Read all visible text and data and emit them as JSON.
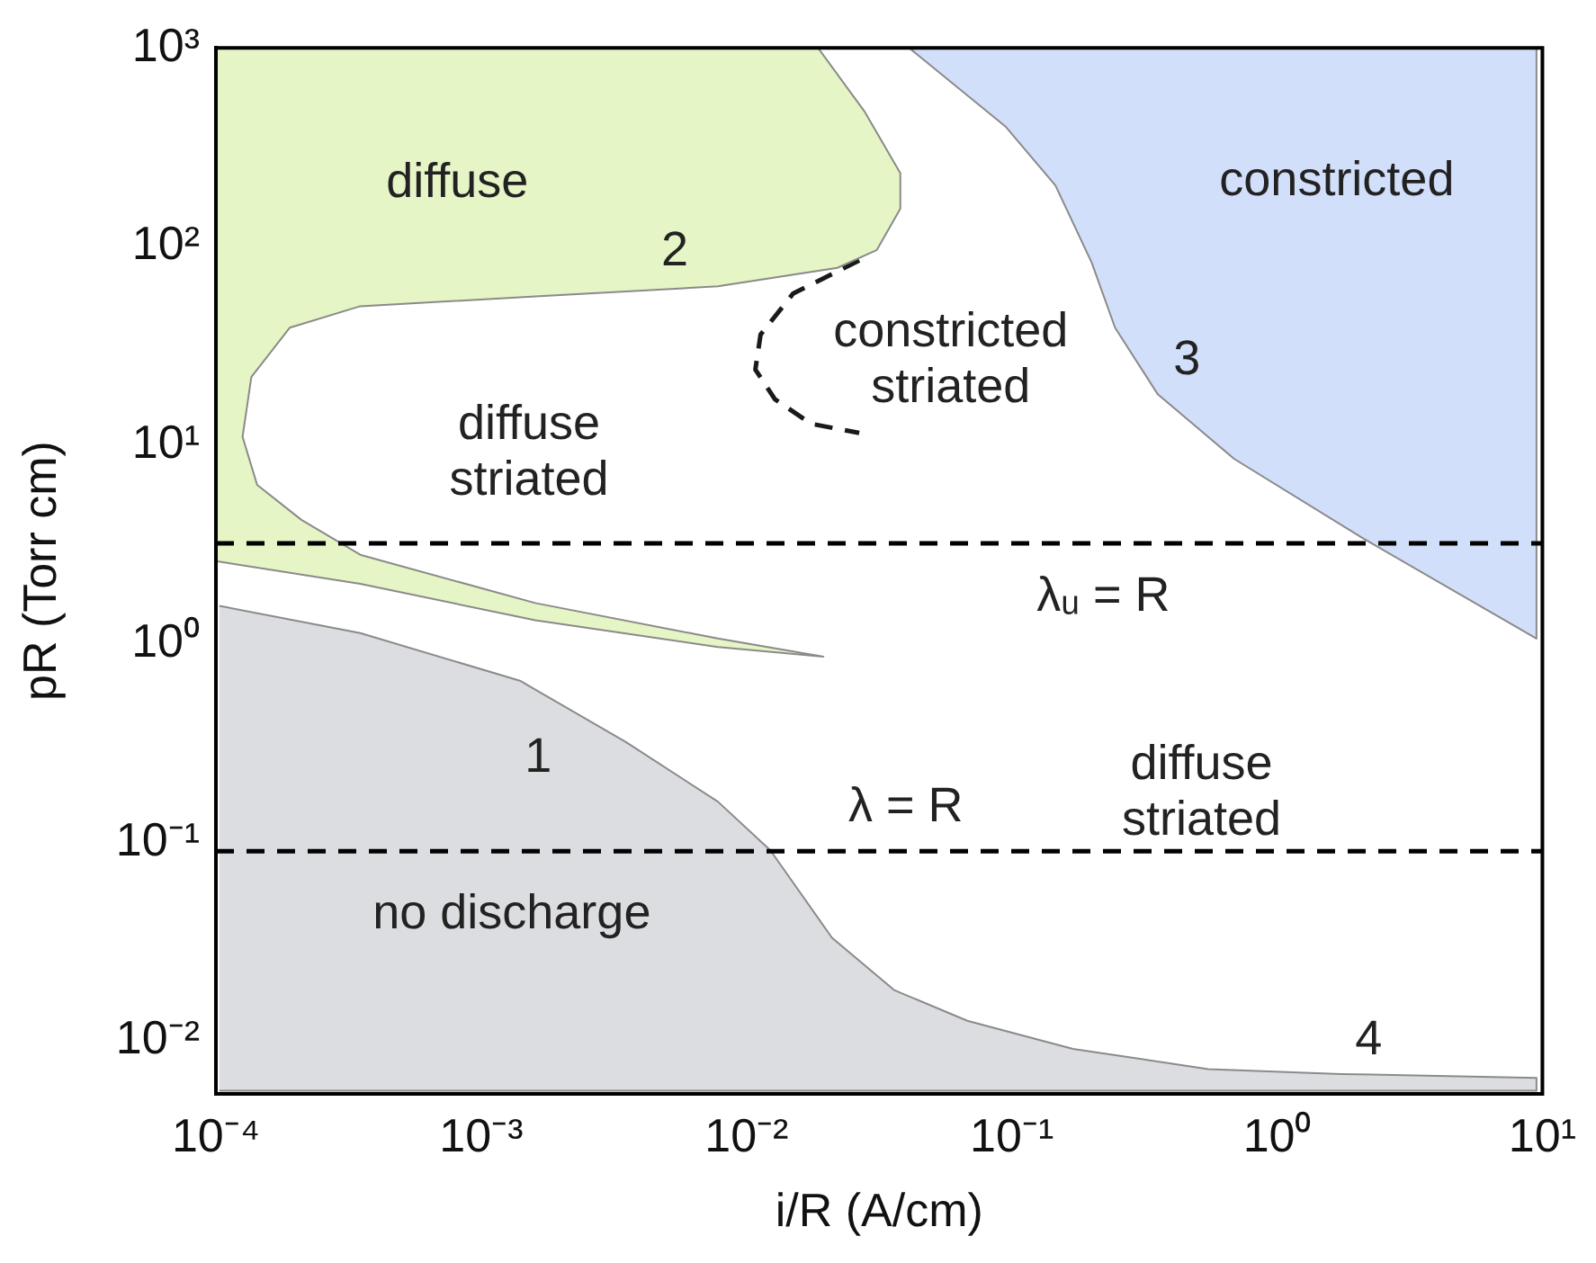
{
  "chart_data": {
    "type": "area",
    "xlabel": "i/R (A/cm)",
    "ylabel": "pR (Torr cm)",
    "log": "xy",
    "xlim": [
      0.0001,
      10
    ],
    "ylim": [
      0.0054,
      1000
    ],
    "xticks": [
      {
        "value": 0.0001,
        "label": "10⁻⁴"
      },
      {
        "value": 0.001,
        "label": "10⁻³"
      },
      {
        "value": 0.01,
        "label": "10⁻²"
      },
      {
        "value": 0.1,
        "label": "10⁻¹"
      },
      {
        "value": 1,
        "label": "10⁰"
      },
      {
        "value": 10,
        "label": "10¹"
      }
    ],
    "yticks": [
      {
        "value": 0.01,
        "label": "10⁻²"
      },
      {
        "value": 0.1,
        "label": "10⁻¹"
      },
      {
        "value": 1,
        "label": "10⁰"
      },
      {
        "value": 10,
        "label": "10¹"
      },
      {
        "value": 100,
        "label": "10²"
      },
      {
        "value": 1000,
        "label": "10³"
      }
    ],
    "series": [
      {
        "color": "#dcdde0",
        "x": [
          0.000103,
          0.00035,
          0.0014,
          0.0035,
          0.0078,
          0.0123,
          0.021,
          0.036,
          0.068,
          0.17,
          0.55,
          1.74,
          9.5,
          9.5,
          0.000103
        ],
        "values": [
          1.55,
          1.13,
          0.65,
          0.32,
          0.16,
          0.091,
          0.033,
          0.018,
          0.0126,
          0.0091,
          0.0072,
          0.0068,
          0.0065,
          0.0056,
          0.0056
        ]
      },
      {
        "color": "#e5f5c5",
        "x": [
          0.0001,
          0.0186,
          0.0278,
          0.038,
          0.038,
          0.031,
          0.022,
          0.0078,
          0.0016,
          0.00035,
          0.00019,
          0.000136,
          0.000126,
          0.000143,
          0.00021,
          0.00035,
          0.0016,
          0.0078,
          0.0195,
          0.0078,
          0.0016,
          0.00035,
          0.0001
        ],
        "values": [
          1000,
          1000,
          480,
          234,
          155,
          96,
          78,
          63,
          56,
          50,
          39,
          22,
          11,
          6.3,
          4.2,
          2.8,
          1.6,
          1.06,
          0.86,
          0.96,
          1.31,
          2.0,
          2.6
        ]
      },
      {
        "color": "#d2dffa",
        "x": [
          0.041,
          0.095,
          0.146,
          0.2,
          0.245,
          0.355,
          0.69,
          2.1,
          9.5,
          9.5
        ],
        "values": [
          1000,
          400,
          203,
          83,
          39,
          18,
          8.5,
          3.4,
          1.06,
          1000
        ]
      },
      {
        "type": "line",
        "color": "#1a1a1a",
        "line_style": "dashed",
        "x": [
          0.0266,
          0.015,
          0.0113,
          0.0108,
          0.0128,
          0.0175,
          0.0266
        ],
        "values": [
          85,
          58,
          36,
          24,
          17,
          12.8,
          11.5
        ]
      }
    ],
    "ref_lines": [
      {
        "axis": "y",
        "value": 3.2,
        "color": "#000000",
        "line_style": "dashed",
        "label": "λᵤ = R"
      },
      {
        "axis": "y",
        "value": 0.09,
        "color": "#000000",
        "line_style": "dashed",
        "label": "λ = R"
      }
    ],
    "annotations": [
      "diffuse",
      "2",
      "constricted\nstriated",
      "diffuse\nstriated",
      "constricted",
      "3",
      "1",
      "diffuse\nstriated",
      "no discharge",
      "4"
    ]
  }
}
